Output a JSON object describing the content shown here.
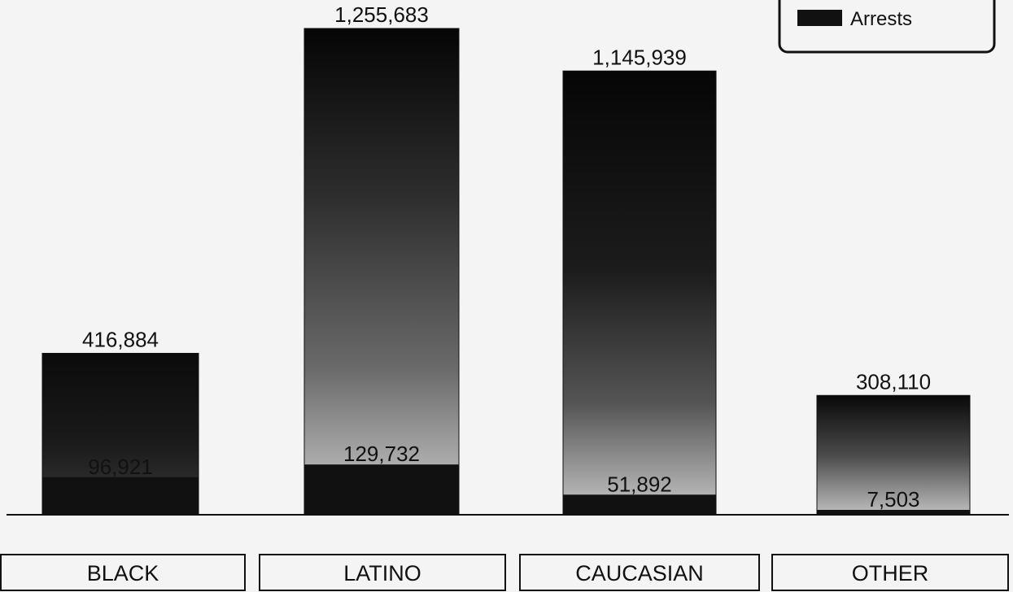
{
  "chart_data": {
    "type": "bar",
    "categories": [
      "BLACK",
      "LATINO",
      "CAUCASIAN",
      "OTHER"
    ],
    "series": [
      {
        "name": "Arrests",
        "values": [
          96921,
          129732,
          51892,
          7503
        ],
        "color": "#111111"
      }
    ],
    "totals": [
      416884,
      1255683,
      1145939,
      308110
    ],
    "total_labels": [
      "416,884",
      "1,255,683",
      "1,145,939",
      "308,110"
    ],
    "arrest_labels": [
      "96,921",
      "129,732",
      "51,892",
      "7,503"
    ],
    "ylim": [
      0,
      1400000
    ],
    "legend_position": "top-right",
    "grid": false
  }
}
